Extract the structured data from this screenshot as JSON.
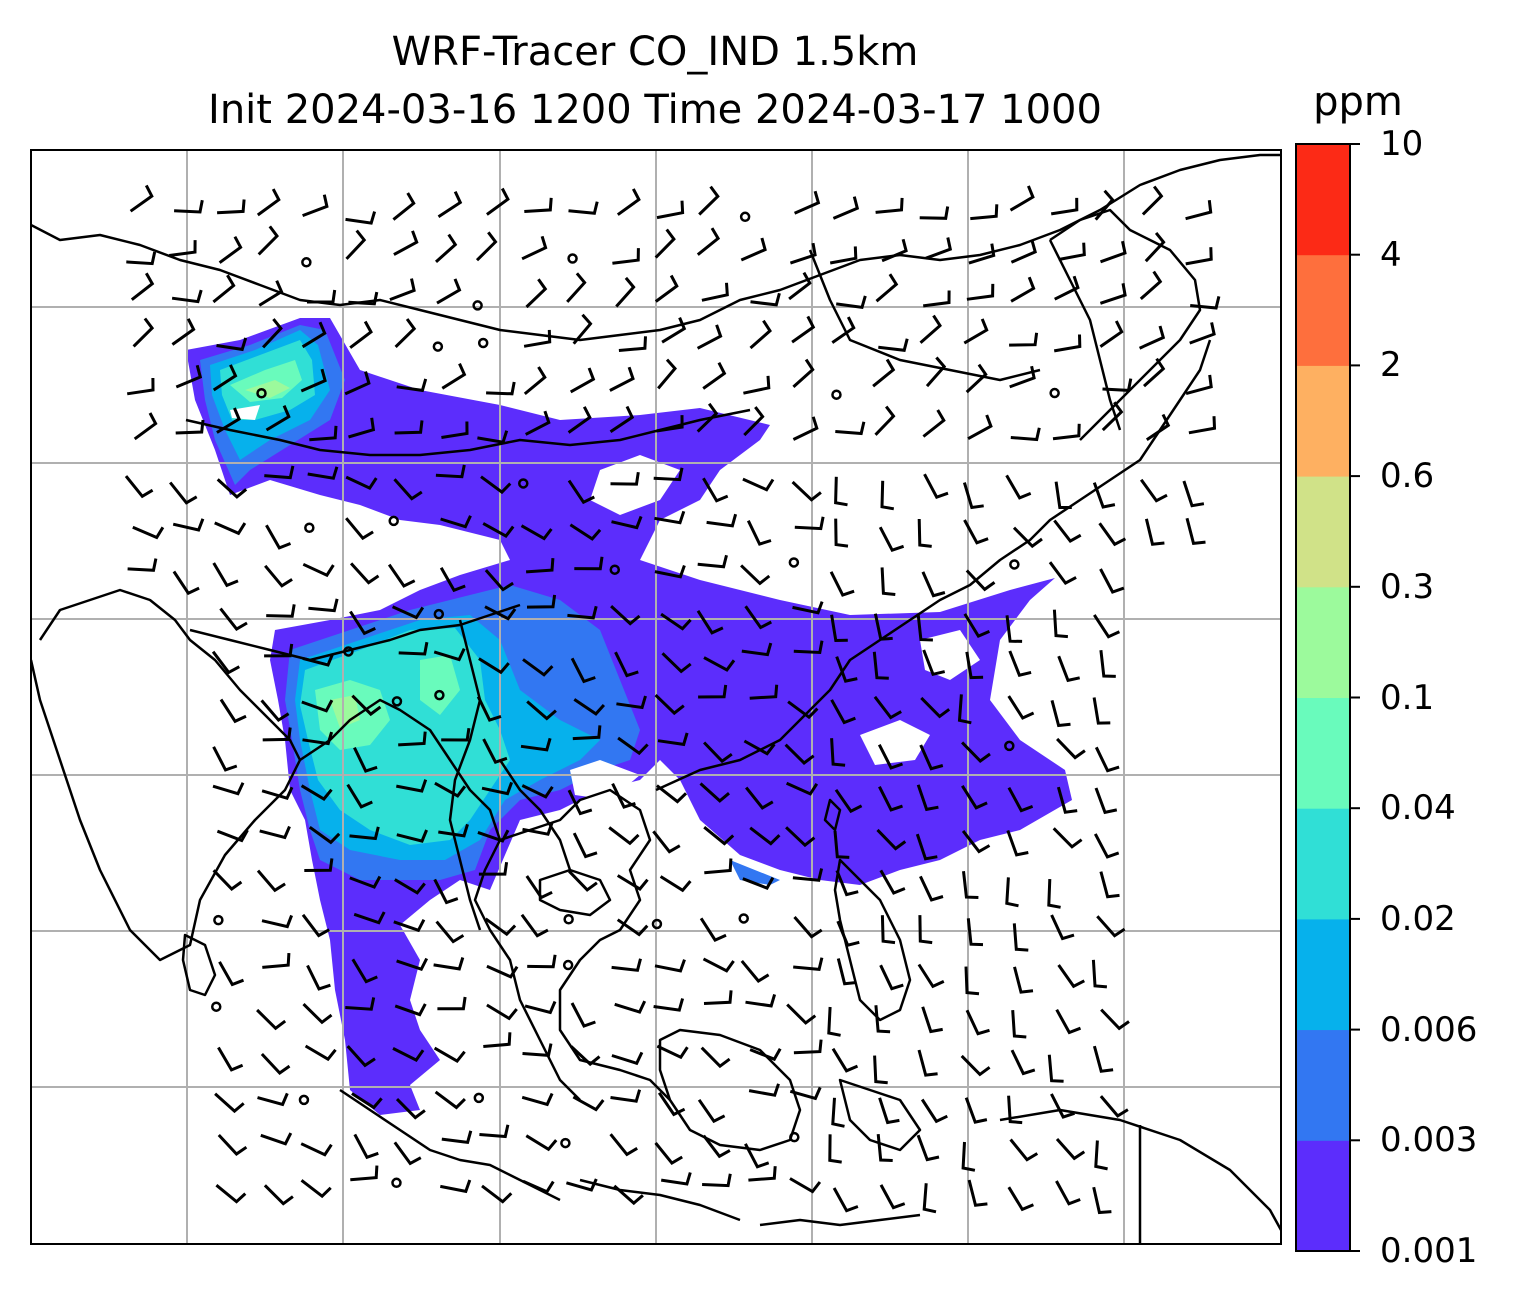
{
  "title_line1": "WRF-Tracer CO_IND 1.5km",
  "title_line2": "Init 2024-03-16 1200 Time 2024-03-17 1000",
  "colorbar": {
    "unit": "ppm",
    "levels": [
      "0.001",
      "0.003",
      "0.006",
      "0.02",
      "0.04",
      "0.1",
      "0.3",
      "0.6",
      "2",
      "4",
      "10"
    ],
    "colors": [
      "#5c2dfc",
      "#3277f2",
      "#06b1ec",
      "#30dfd6",
      "#69fbbc",
      "#9cfa9c",
      "#d0e288",
      "#feb061",
      "#fe6f3d",
      "#fc2a16"
    ]
  },
  "map": {
    "tracer": "CO_IND",
    "height": "1.5km",
    "gridlines": true,
    "overlay": "wind barbs",
    "coastline_color": "#000000",
    "grid_color": "#b0b0b0"
  }
}
